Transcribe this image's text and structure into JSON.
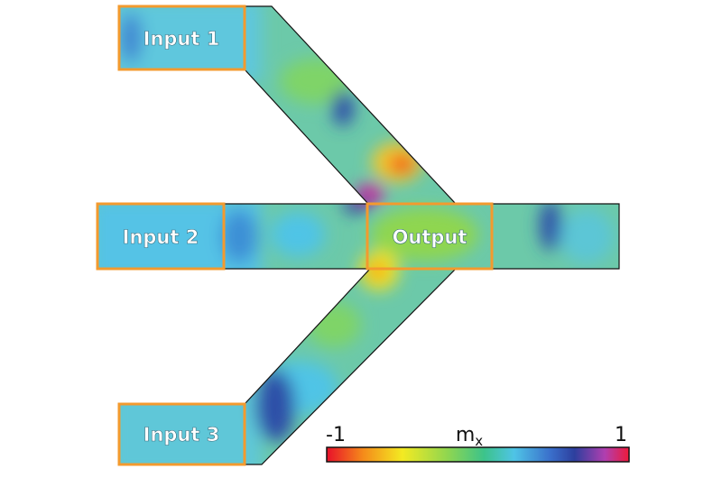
{
  "ports": [
    {
      "label": "Input 1"
    },
    {
      "label": "Input 2"
    },
    {
      "label": "Input 3"
    },
    {
      "label": "Output"
    }
  ],
  "colorbar": {
    "min": "-1",
    "max": "1",
    "label": "m",
    "label_sub": "x"
  }
}
